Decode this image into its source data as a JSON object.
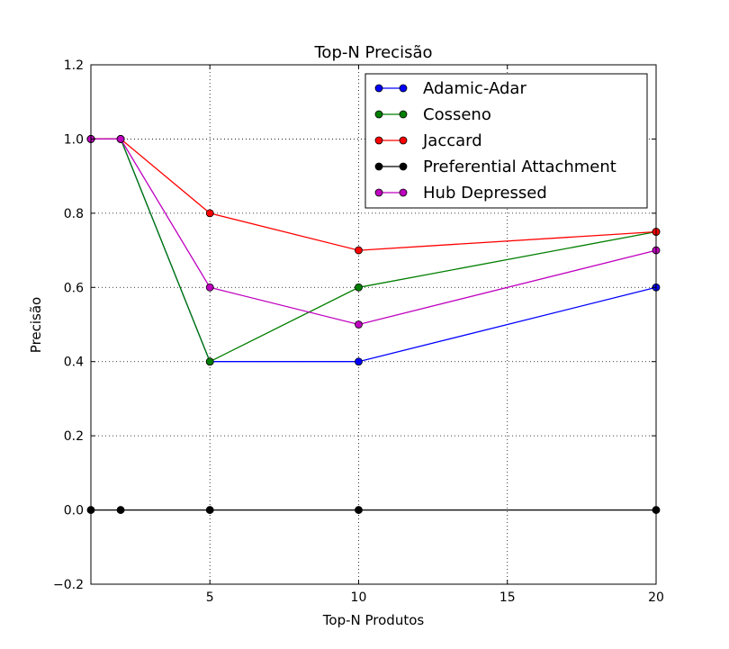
{
  "chart_data": {
    "type": "line",
    "title": "Top-N Precisão",
    "xlabel": "Top-N Produtos",
    "ylabel": "Precisão",
    "xlim": [
      1,
      20
    ],
    "ylim": [
      -0.2,
      1.2
    ],
    "xticks": [
      5,
      10,
      15,
      20
    ],
    "yticks": [
      -0.2,
      0.0,
      0.2,
      0.4,
      0.6,
      0.8,
      1.0,
      1.2
    ],
    "xtick_labels": [
      "5",
      "10",
      "15",
      "20"
    ],
    "ytick_labels": [
      "−0.2",
      "0.0",
      "0.2",
      "0.4",
      "0.6",
      "0.8",
      "1.0",
      "1.2"
    ],
    "grid": true,
    "legend_position": "top-right",
    "x": [
      1,
      2,
      5,
      10,
      20
    ],
    "series": [
      {
        "name": "Adamic-Adar",
        "color": "#0000ff",
        "values": [
          1.0,
          1.0,
          0.4,
          0.4,
          0.6
        ]
      },
      {
        "name": "Cosseno",
        "color": "#007f00",
        "values": [
          1.0,
          1.0,
          0.4,
          0.6,
          0.75
        ]
      },
      {
        "name": "Jaccard",
        "color": "#ff0000",
        "values": [
          1.0,
          1.0,
          0.8,
          0.7,
          0.75
        ]
      },
      {
        "name": "Preferential Attachment",
        "color": "#000000",
        "values": [
          0.0,
          0.0,
          0.0,
          0.0,
          0.0
        ]
      },
      {
        "name": "Hub Depressed",
        "color": "#bf00bf",
        "values": [
          1.0,
          1.0,
          0.6,
          0.5,
          0.7
        ]
      }
    ]
  }
}
